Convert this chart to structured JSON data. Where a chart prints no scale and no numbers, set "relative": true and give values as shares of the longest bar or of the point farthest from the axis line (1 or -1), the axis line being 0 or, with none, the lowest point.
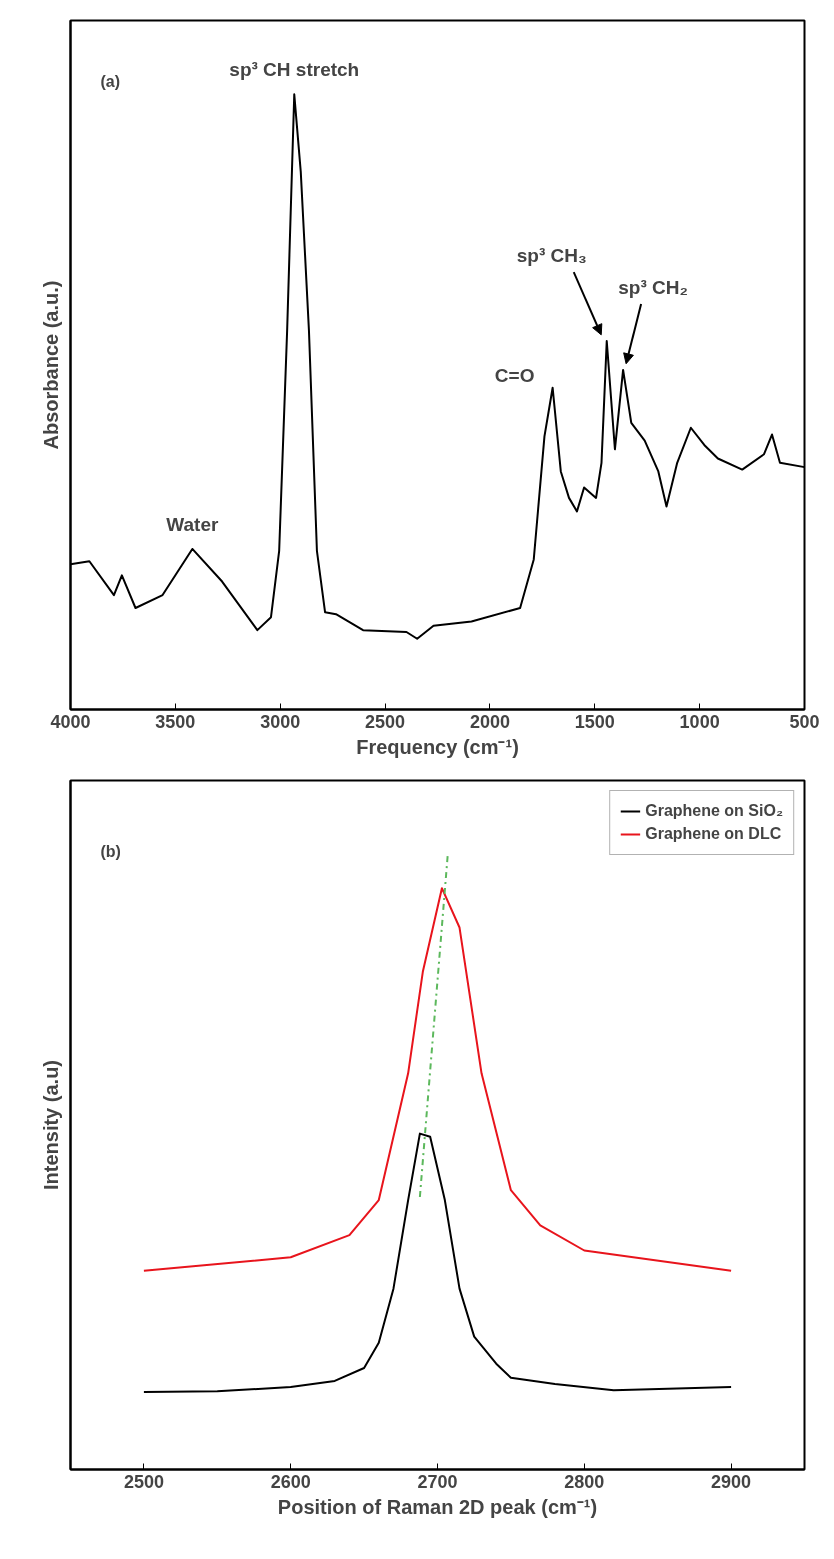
{
  "chart_data": [
    {
      "type": "line",
      "relative": true,
      "xlabel": "Frequency (cm⁻¹)",
      "ylabel": "Absorbance (a.u.)",
      "xlim": [
        4000,
        500
      ],
      "xticks": [
        4000,
        3500,
        3000,
        2500,
        2000,
        1500,
        1000,
        500
      ],
      "grid": false,
      "legend": false,
      "tick_labels": "x",
      "annotations": [
        "(a)",
        {
          "text": "sp³ CH stretch",
          "x": 2933,
          "y": 1.0
        },
        {
          "text": "Water",
          "x": 3419,
          "y": 0.261
        },
        {
          "text": "C=O",
          "x": 1701,
          "y": 0.523
        },
        {
          "text": "sp³ CH₃",
          "x": 1443,
          "y": 0.599
        },
        {
          "text": "sp³ CH₂",
          "x": 1365,
          "y": 0.552
        }
      ],
      "series": [
        {
          "color": "#000000",
          "x": [
            4000,
            3910,
            3793,
            3755,
            3690,
            3561,
            3419,
            3277,
            3109,
            3044,
            3005,
            2967,
            2933,
            2902,
            2863,
            2825,
            2786,
            2734,
            2605,
            2398,
            2347,
            2269,
            2088,
            1856,
            1791,
            1740,
            1701,
            1662,
            1623,
            1585,
            1551,
            1494,
            1468,
            1443,
            1404,
            1365,
            1326,
            1262,
            1197,
            1158,
            1107,
            1042,
            978,
            913,
            797,
            693,
            655,
            617,
            500
          ],
          "values": [
            0.236,
            0.241,
            0.186,
            0.218,
            0.165,
            0.186,
            0.261,
            0.208,
            0.129,
            0.15,
            0.258,
            0.616,
            1.0,
            0.874,
            0.616,
            0.258,
            0.158,
            0.155,
            0.129,
            0.126,
            0.115,
            0.136,
            0.143,
            0.165,
            0.244,
            0.444,
            0.523,
            0.387,
            0.344,
            0.322,
            0.361,
            0.344,
            0.401,
            0.599,
            0.423,
            0.552,
            0.466,
            0.437,
            0.387,
            0.33,
            0.401,
            0.458,
            0.43,
            0.408,
            0.39,
            0.415,
            0.447,
            0.401,
            0.394
          ]
        }
      ]
    },
    {
      "type": "line",
      "relative": true,
      "xlabel": "Position of Raman 2D peak (cm⁻¹)",
      "ylabel": "Intensity (a.u)",
      "xlim": [
        2450,
        2950
      ],
      "xticks": [
        2500,
        2600,
        2700,
        2800,
        2900
      ],
      "grid": false,
      "legend": "top right",
      "tick_labels": "x",
      "annotations": [
        "(b)"
      ],
      "series": [
        {
          "name": "Graphene on SiO₂",
          "color": "#000000",
          "x": [
            2500,
            2550,
            2600,
            2630,
            2650,
            2660,
            2670,
            2680,
            2688,
            2695,
            2705,
            2715,
            2725,
            2740,
            2750,
            2780,
            2820,
            2900
          ],
          "values": [
            0.126,
            0.127,
            0.134,
            0.144,
            0.165,
            0.206,
            0.294,
            0.438,
            0.546,
            0.541,
            0.438,
            0.294,
            0.216,
            0.172,
            0.149,
            0.139,
            0.129,
            0.134
          ]
        },
        {
          "name": "Graphene on DLC",
          "color": "#e8141c",
          "x": [
            2500,
            2600,
            2640,
            2660,
            2680,
            2690,
            2703,
            2715,
            2730,
            2750,
            2770,
            2800,
            2900
          ],
          "values": [
            0.323,
            0.345,
            0.381,
            0.438,
            0.644,
            0.809,
            0.945,
            0.881,
            0.644,
            0.454,
            0.397,
            0.356,
            0.323
          ]
        },
        {
          "color": "#5cb85c",
          "x": [
            2688,
            2707
          ],
          "values": [
            0.443,
            1.0
          ],
          "line_style": "dashed"
        }
      ]
    }
  ]
}
